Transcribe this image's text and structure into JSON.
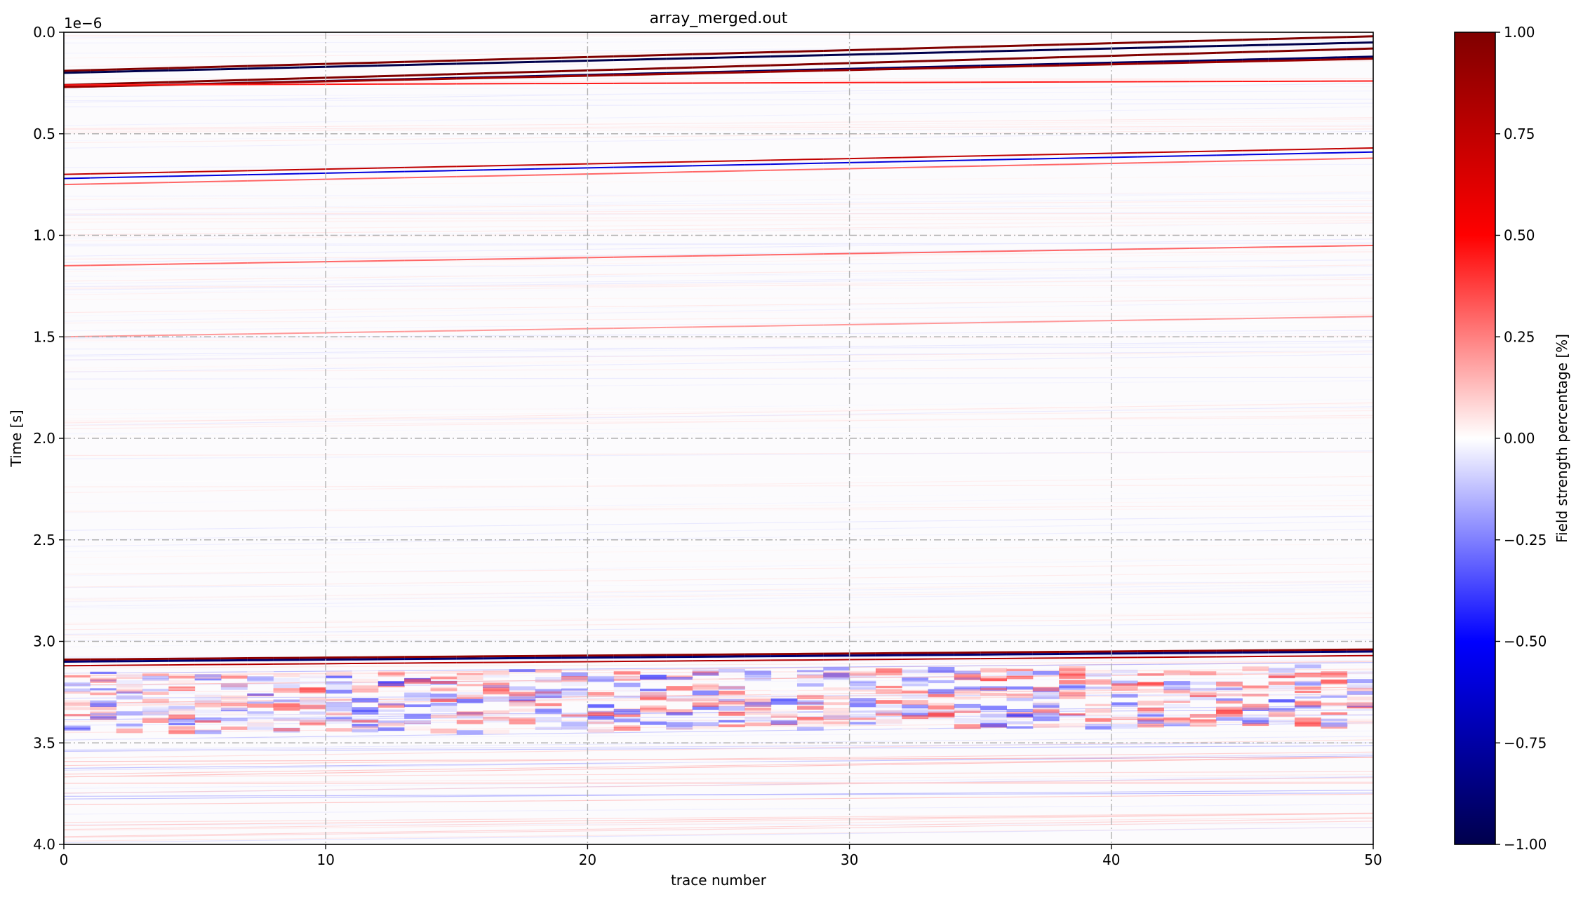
{
  "chart_data": {
    "type": "heatmap",
    "title": "array_merged.out",
    "xlabel": "trace number",
    "ylabel": "Time [s]",
    "y_offset_label": "1e−6",
    "xlim": [
      0,
      50
    ],
    "ylim": [
      4.0,
      0.0
    ],
    "y_scale_factor": 1e-06,
    "x_ticks": [
      "0",
      "10",
      "20",
      "30",
      "40",
      "50"
    ],
    "y_ticks": [
      "0.0",
      "0.5",
      "1.0",
      "1.5",
      "2.0",
      "2.5",
      "3.0",
      "3.5",
      "4.0"
    ],
    "grid": true,
    "grid_style": "dash-dot",
    "colormap": "seismic",
    "colormap_stops": [
      "#00004c",
      "#0000ff",
      "#ffffff",
      "#ff0000",
      "#800000"
    ],
    "colorbar": {
      "label": "Field strength percentage [%]",
      "range": [
        -1.0,
        1.0
      ],
      "ticks": [
        "1.00",
        "0.75",
        "0.50",
        "0.25",
        "0.00",
        "−0.25",
        "−0.50",
        "−0.75",
        "−1.00"
      ],
      "placement": "right"
    },
    "reflections": [
      {
        "t0": 0.19,
        "t50": 0.02,
        "amplitude": 1.0
      },
      {
        "t0": 0.2,
        "t50": 0.05,
        "amplitude": -1.0
      },
      {
        "t0": 0.26,
        "t50": 0.08,
        "amplitude": 1.0
      },
      {
        "t0": 0.27,
        "t50": 0.12,
        "amplitude": -0.95
      },
      {
        "t0": 0.27,
        "t50": 0.13,
        "amplitude": 0.9
      },
      {
        "t0": 0.26,
        "t50": 0.24,
        "amplitude": 0.45
      },
      {
        "t0": 0.7,
        "t50": 0.57,
        "amplitude": 0.75
      },
      {
        "t0": 0.72,
        "t50": 0.59,
        "amplitude": -0.6
      },
      {
        "t0": 0.75,
        "t50": 0.62,
        "amplitude": 0.3
      },
      {
        "t0": 1.15,
        "t50": 1.05,
        "amplitude": 0.3
      },
      {
        "t0": 1.5,
        "t50": 1.4,
        "amplitude": 0.2
      },
      {
        "t0": 3.09,
        "t50": 3.04,
        "amplitude": 0.95
      },
      {
        "t0": 3.1,
        "t50": 3.05,
        "amplitude": -0.9
      },
      {
        "t0": 3.12,
        "t50": 3.07,
        "amplitude": 0.8
      }
    ],
    "scatter_zone": {
      "t_start": 3.15,
      "t_end": 3.45,
      "amplitude": 0.45
    }
  }
}
